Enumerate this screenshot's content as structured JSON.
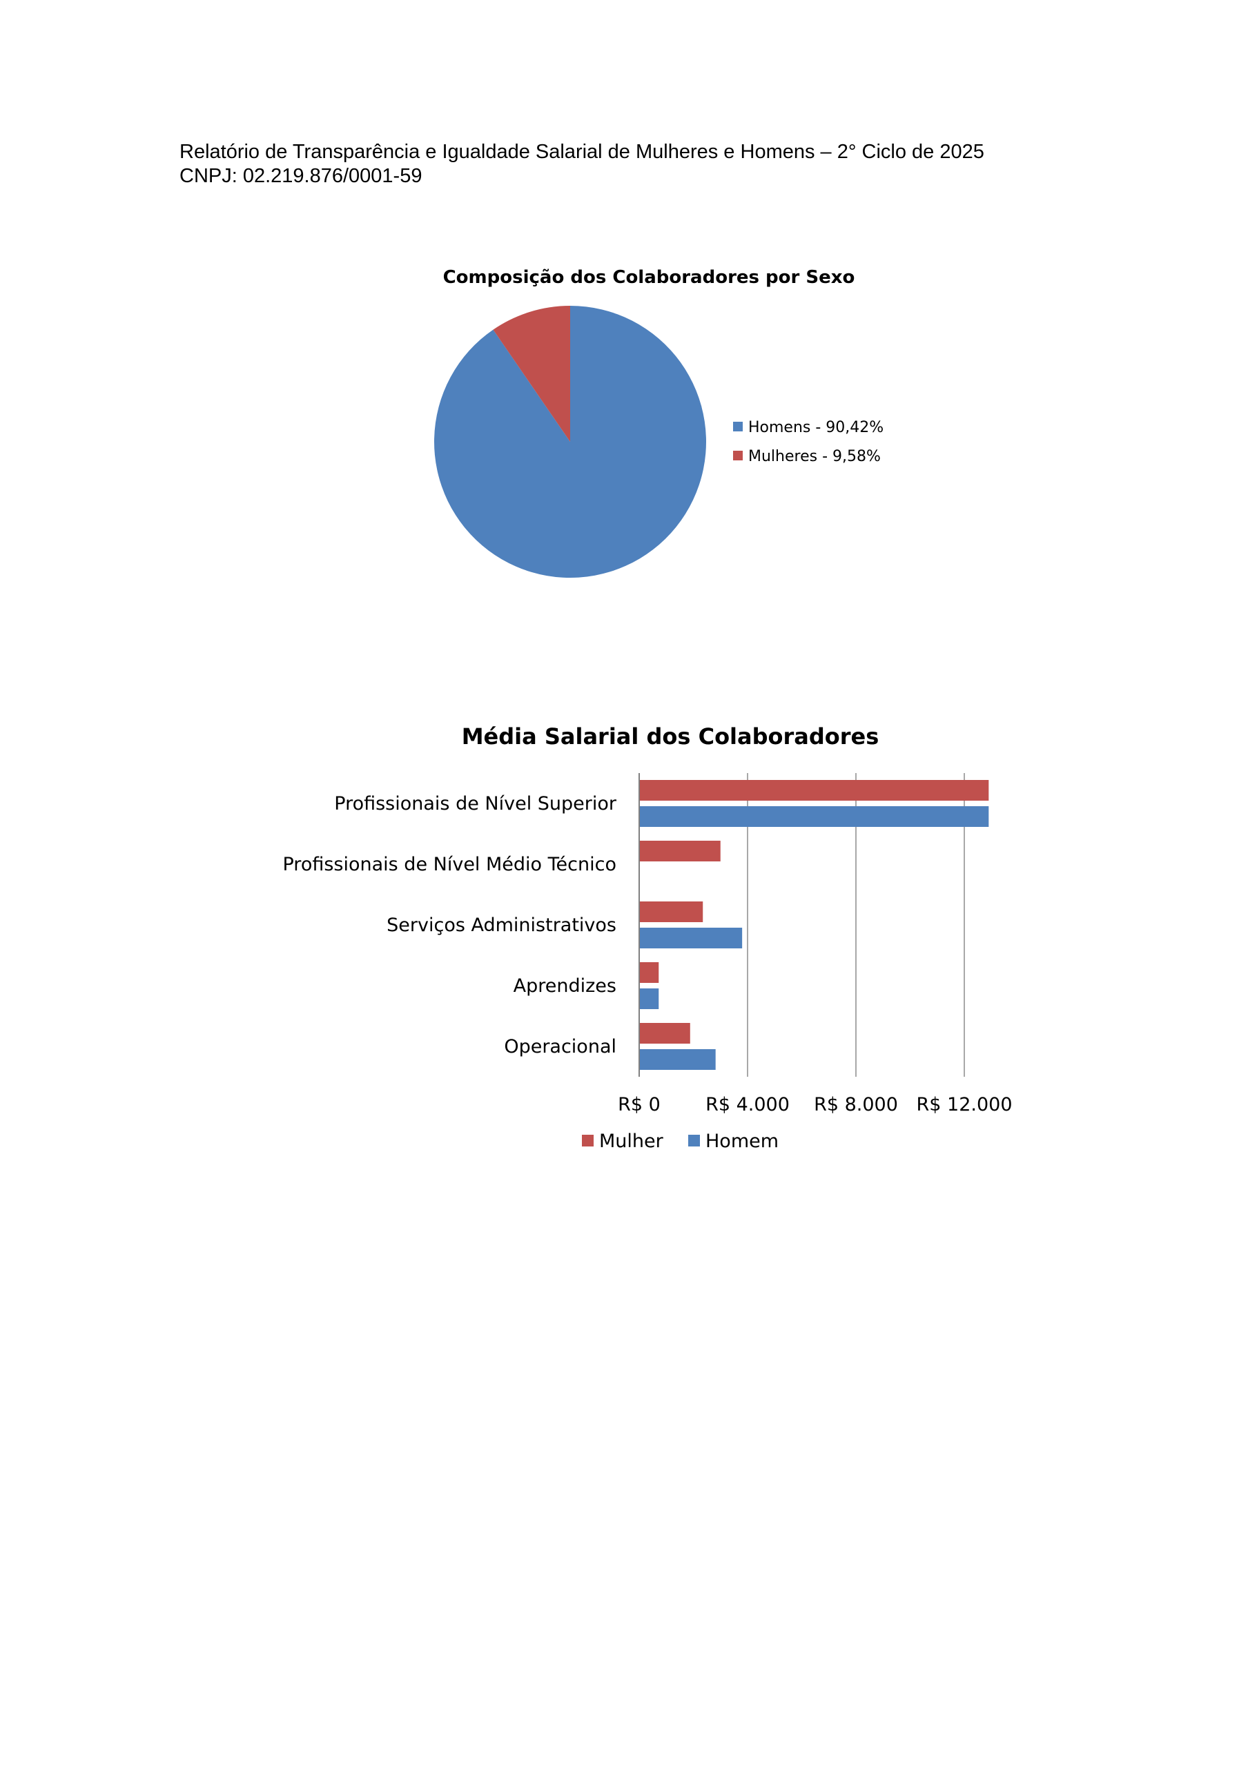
{
  "header": {
    "line1": "Relatório de Transparência e Igualdade Salarial de Mulheres e Homens – 2° Ciclo de 2025",
    "line2": "CNPJ: 02.219.876/0001-59"
  },
  "colors": {
    "homem": "#4F81BD",
    "mulher": "#C0504D",
    "grid": "#8C8C8C",
    "text": "#000000"
  },
  "chart_data": [
    {
      "type": "pie",
      "title": "Composição dos Colaboradores por Sexo",
      "slices": [
        {
          "label": "Homens - 90,42%",
          "value": 90.42,
          "color": "#4F81BD"
        },
        {
          "label": "Mulheres - 9,58%",
          "value": 9.58,
          "color": "#C0504D"
        }
      ],
      "legend_position": "right"
    },
    {
      "type": "bar",
      "orientation": "horizontal",
      "title": "Média Salarial dos Colaboradores",
      "categories": [
        "Profissionais de Nível Superior",
        "Profissionais de Nível Médio Técnico",
        "Serviços Administrativos",
        "Aprendizes",
        "Operacional"
      ],
      "series": [
        {
          "name": "Mulher",
          "color": "#C0504D",
          "values": [
            12900,
            3000,
            2350,
            720,
            1880
          ]
        },
        {
          "name": "Homem",
          "color": "#4F81BD",
          "values": [
            12900,
            null,
            3800,
            720,
            2820
          ]
        }
      ],
      "xlim": [
        0,
        14000
      ],
      "xticks": [
        0,
        4000,
        8000,
        12000
      ],
      "xtick_labels": [
        "R$ 0",
        "R$ 4.000",
        "R$ 8.000",
        "R$ 12.000"
      ],
      "grid": true,
      "legend_position": "bottom"
    }
  ]
}
